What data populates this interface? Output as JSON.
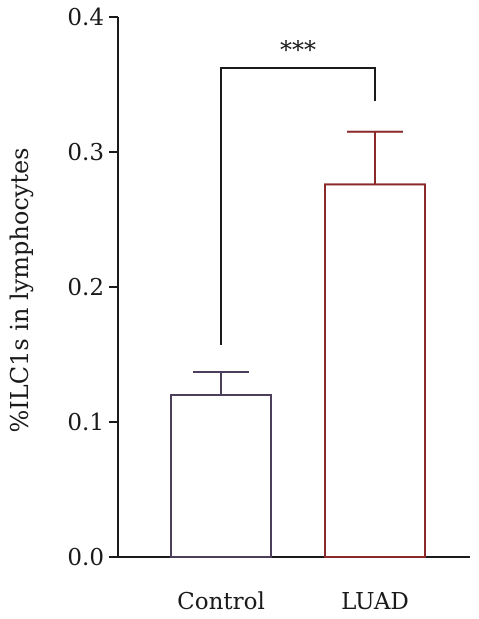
{
  "chart_data": {
    "type": "bar",
    "title": "",
    "xlabel": "",
    "ylabel": "%ILC1s in lymphocytes",
    "ylim": [
      0,
      0.4
    ],
    "yticks": [
      "0.0",
      "0.1",
      "0.2",
      "0.3",
      "0.4"
    ],
    "categories": [
      "Control",
      "LUAD"
    ],
    "values": [
      0.12,
      0.276
    ],
    "error_upper": [
      0.017,
      0.039
    ],
    "bar_colors": [
      "#4b3f5c",
      "#8b2a2a"
    ],
    "significance": {
      "between": [
        "Control",
        "LUAD"
      ],
      "label": "***"
    },
    "grid": false,
    "legend": "none"
  }
}
